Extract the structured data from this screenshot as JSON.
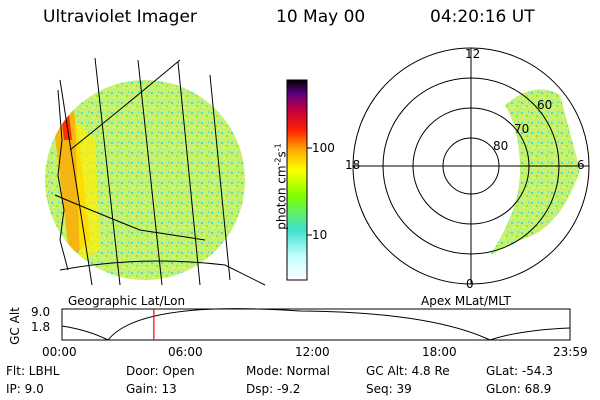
{
  "header": {
    "instrument": "Ultraviolet Imager",
    "date": "10 May 00",
    "time": "04:20:16 UT"
  },
  "colorbar": {
    "label_main": "photon cm",
    "label_sup1": "-2",
    "label_mid": "s",
    "label_sup2": "-1",
    "ticks": [
      {
        "label": "100",
        "value": 100
      },
      {
        "label": "10",
        "value": 10
      }
    ],
    "scale": "log",
    "colors": [
      "#f4f4ff",
      "#40e0d0",
      "#7fff00",
      "#ffff00",
      "#ff9900",
      "#ff0000",
      "#b00030",
      "#000000"
    ]
  },
  "geo_panel": {
    "label": "Geographic Lat/Lon"
  },
  "polar_panel": {
    "label": "Apex MLat/MLT",
    "mlt_labels": [
      "12",
      "18",
      "6",
      "0"
    ],
    "lat_labels": [
      "60",
      "70",
      "80"
    ]
  },
  "altitude_plot": {
    "ylabel": "GC Alt",
    "y_ticks": [
      "9.0",
      "1.8"
    ],
    "y_range": [
      1.8,
      9.0
    ],
    "x_ticks": [
      "00:00",
      "06:00",
      "12:00",
      "18:00",
      "23:59"
    ],
    "current_time_hours": 4.34,
    "marker_color": "#ff0000"
  },
  "status": {
    "flt": "Flt: LBHL",
    "ip": "IP: 9.0",
    "door": "Door: Open",
    "gain": "Gain: 13",
    "mode": "Mode: Normal",
    "dsp": "Dsp: -9.2",
    "gc_alt": "GC Alt: 4.8 Re",
    "seq": "Seq: 39",
    "glat": "GLat: -54.3",
    "glon": "GLon: 68.9"
  }
}
